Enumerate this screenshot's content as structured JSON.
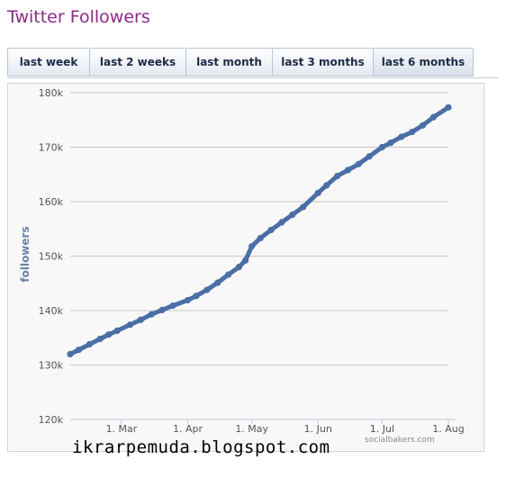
{
  "page": {
    "title": "Twitter Followers",
    "credit": "socialbakers.com",
    "watermark": "ikrarpemuda.blogspot.com"
  },
  "tabs": [
    {
      "label": "last week"
    },
    {
      "label": "last 2 weeks"
    },
    {
      "label": "last month"
    },
    {
      "label": "last 3 months"
    },
    {
      "label": "last 6 months"
    }
  ],
  "colors": {
    "series": "#4a6fa5",
    "grid": "#c8c8c8",
    "axis_label": "#6b83a8",
    "tick_text": "#555555",
    "title": "#8b2a86"
  },
  "chart_data": {
    "type": "line",
    "title": "",
    "xlabel": "",
    "ylabel": "followers",
    "ylim": [
      120000,
      180000
    ],
    "yticks": [
      120000,
      130000,
      140000,
      150000,
      160000,
      170000,
      180000
    ],
    "ytick_labels": [
      "120k",
      "130k",
      "140k",
      "150k",
      "160k",
      "170k",
      "180k"
    ],
    "xlim": [
      "2012-02-06",
      "2012-08-01"
    ],
    "xticks": [
      "2012-03-01",
      "2012-04-01",
      "2012-05-01",
      "2012-06-01",
      "2012-07-01",
      "2012-08-01"
    ],
    "xtick_labels": [
      "1. Mar",
      "1. Apr",
      "1. May",
      "1. Jun",
      "1. Jul",
      "1. Aug"
    ],
    "grid": true,
    "legend": "none",
    "series": [
      {
        "x": [
          "2012-02-06",
          "2012-02-10",
          "2012-02-15",
          "2012-02-20",
          "2012-02-24",
          "2012-02-28",
          "2012-03-05",
          "2012-03-10",
          "2012-03-15",
          "2012-03-20",
          "2012-03-25",
          "2012-04-01",
          "2012-04-05",
          "2012-04-10",
          "2012-04-15",
          "2012-04-20",
          "2012-04-25",
          "2012-04-28",
          "2012-05-01",
          "2012-05-05",
          "2012-05-10",
          "2012-05-15",
          "2012-05-20",
          "2012-05-25",
          "2012-06-01",
          "2012-06-05",
          "2012-06-10",
          "2012-06-15",
          "2012-06-20",
          "2012-06-25",
          "2012-07-01",
          "2012-07-05",
          "2012-07-10",
          "2012-07-15",
          "2012-07-20",
          "2012-07-25",
          "2012-08-01"
        ],
        "y": [
          132000,
          132800,
          133800,
          134800,
          135600,
          136300,
          137400,
          138300,
          139300,
          140100,
          140900,
          141900,
          142700,
          143800,
          145100,
          146600,
          148000,
          149200,
          151800,
          153300,
          154800,
          156200,
          157600,
          159000,
          161600,
          163000,
          164700,
          165800,
          166900,
          168300,
          170000,
          170800,
          171900,
          172800,
          174000,
          175500,
          177300
        ]
      }
    ]
  }
}
